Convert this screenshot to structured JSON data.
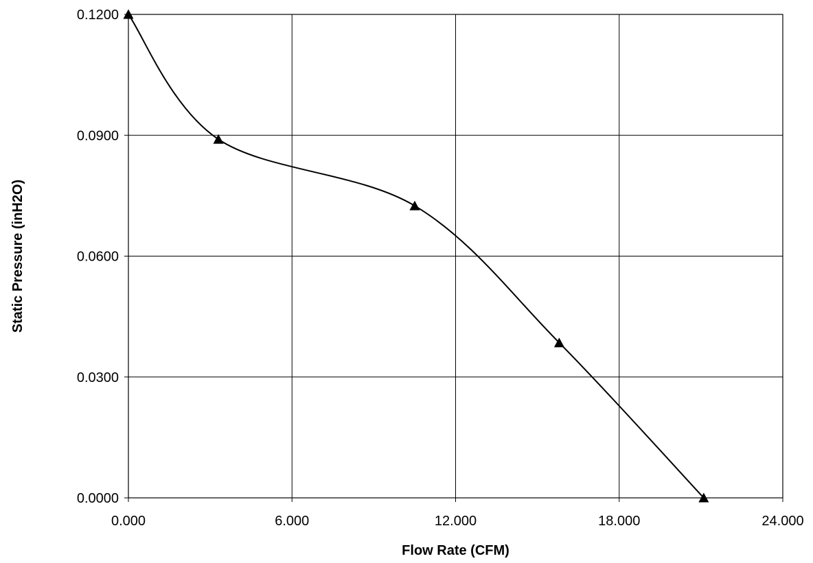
{
  "chart_data": {
    "type": "line",
    "title": "",
    "xlabel": "Flow Rate (CFM)",
    "ylabel": "Static Pressure (inH2O)",
    "xlim": [
      0,
      24
    ],
    "ylim": [
      0,
      0.12
    ],
    "x_ticks": [
      0,
      6,
      12,
      18,
      24
    ],
    "x_tick_labels": [
      "0.000",
      "6.000",
      "12.000",
      "18.000",
      "24.000"
    ],
    "y_ticks": [
      0,
      0.03,
      0.06,
      0.09,
      0.12
    ],
    "y_tick_labels": [
      "0.0000",
      "0.0300",
      "0.0600",
      "0.0900",
      "0.1200"
    ],
    "grid": true,
    "smoothed": true,
    "marker": "triangle",
    "colors": {
      "line": "#000000",
      "grid": "#000000",
      "background": "#ffffff"
    },
    "series": [
      {
        "x": [
          0.0,
          3.3,
          10.5,
          15.8,
          21.1
        ],
        "y": [
          0.12,
          0.089,
          0.0725,
          0.0385,
          0.0
        ]
      }
    ]
  }
}
